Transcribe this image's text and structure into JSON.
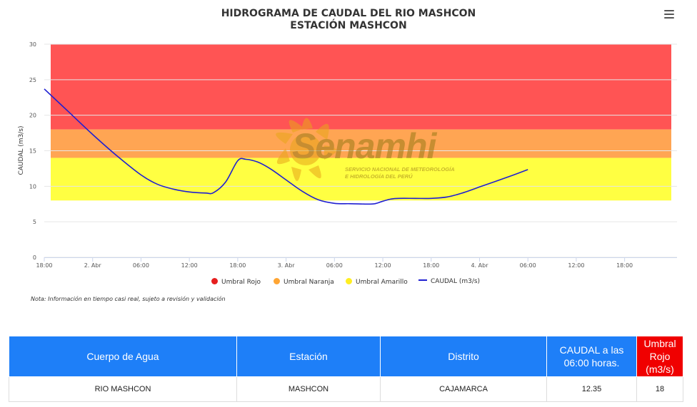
{
  "header": {
    "title_line1": "HIDROGRAMA DE CAUDAL DEL RIO MASHCON",
    "title_line2": "ESTACIÓN MASHCON",
    "menu_icon": "hamburger-menu-icon"
  },
  "watermark": {
    "brand": "Senamhi",
    "line1": "SERVICIO NACIONAL DE METEOROLOGÍA",
    "line2": "E HIDROLOGÍA DEL PERÚ"
  },
  "chart_data": {
    "type": "line",
    "ylabel": "CAUDAL (m3/s)",
    "ylim": [
      0,
      30
    ],
    "yticks": [
      "0",
      "5",
      "10",
      "15",
      "20",
      "25",
      "30"
    ],
    "x_ticks": [
      "18:00",
      "2. Abr",
      "06:00",
      "12:00",
      "18:00",
      "3. Abr",
      "06:00",
      "12:00",
      "18:00",
      "4. Abr",
      "06:00",
      "12:00",
      "18:00"
    ],
    "x_tick_hours": [
      0,
      6,
      12,
      18,
      24,
      30,
      36,
      42,
      48,
      54,
      60,
      66,
      72
    ],
    "x_range_hours": [
      0,
      78.5
    ],
    "grid": true,
    "legend_position": "bottom",
    "bands": [
      {
        "name": "Umbral Rojo",
        "color": "#ff5454",
        "from": 18,
        "to": 30
      },
      {
        "name": "Umbral Naranja",
        "color": "#ffa553",
        "from": 14,
        "to": 18
      },
      {
        "name": "Umbral Amarillo",
        "color": "#ffff42",
        "from": 8,
        "to": 14
      }
    ],
    "series": [
      {
        "name": "CAUDAL (m3/s)",
        "color": "#1f1fd1",
        "points": [
          [
            0,
            23.7
          ],
          [
            3,
            20.5
          ],
          [
            6,
            17.3
          ],
          [
            9,
            14.3
          ],
          [
            12,
            11.6
          ],
          [
            14,
            10.3
          ],
          [
            16,
            9.6
          ],
          [
            18,
            9.2
          ],
          [
            20,
            9.05
          ],
          [
            21,
            9.1
          ],
          [
            22.5,
            10.6
          ],
          [
            24,
            13.6
          ],
          [
            25,
            13.8
          ],
          [
            26.5,
            13.4
          ],
          [
            28,
            12.5
          ],
          [
            30,
            10.9
          ],
          [
            32,
            9.3
          ],
          [
            34,
            8.1
          ],
          [
            36,
            7.6
          ],
          [
            38,
            7.55
          ],
          [
            40,
            7.5
          ],
          [
            41,
            7.55
          ],
          [
            42,
            7.9
          ],
          [
            43,
            8.2
          ],
          [
            44,
            8.3
          ],
          [
            46,
            8.3
          ],
          [
            48,
            8.3
          ],
          [
            50,
            8.5
          ],
          [
            52,
            9.1
          ],
          [
            54,
            9.9
          ],
          [
            56,
            10.7
          ],
          [
            58,
            11.5
          ],
          [
            60,
            12.35
          ]
        ]
      }
    ]
  },
  "legend": [
    {
      "label": "Umbral Rojo",
      "color": "#e61e1e",
      "kind": "dot"
    },
    {
      "label": "Umbral Naranja",
      "color": "#ffa533",
      "kind": "dot"
    },
    {
      "label": "Umbral Amarillo",
      "color": "#ffee22",
      "kind": "dot"
    },
    {
      "label": "CAUDAL (m3/s)",
      "color": "#1f1fd1",
      "kind": "line"
    }
  ],
  "note": "Nota: Información en tiempo casi real, sujeto a revisión y validación",
  "table": {
    "headers": [
      "Cuerpo de Agua",
      "Estación",
      "Distrito",
      "CAUDAL a las 06:00 horas.",
      "Umbral Rojo (m3/s)"
    ],
    "row": [
      "RIO MASHCON",
      "MASHCON",
      "CAJAMARCA",
      "12.35",
      "18"
    ]
  }
}
